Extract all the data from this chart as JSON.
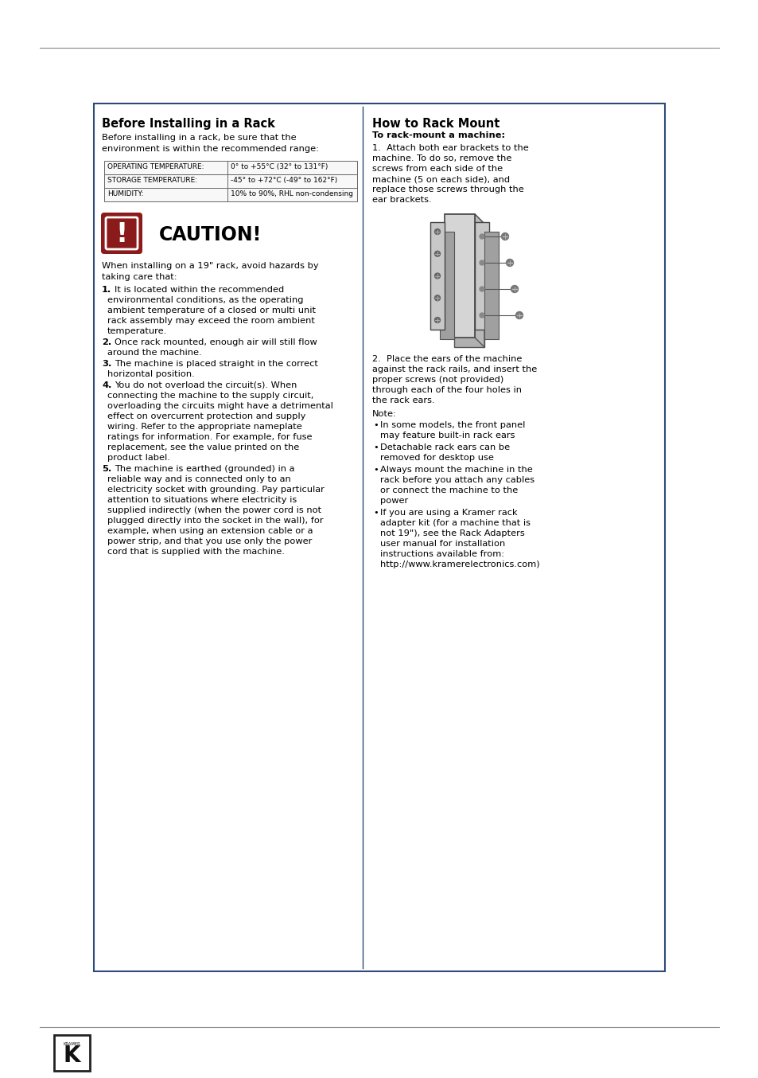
{
  "bg_color": "#ffffff",
  "border_color": "#2e4a7a",
  "page_bg": "#ffffff",
  "top_line_color": "#888888",
  "bottom_line_color": "#888888",
  "left_section": {
    "title": "Before Installing in a Rack",
    "intro": "Before installing in a rack, be sure that the\nenvironment is within the recommended range:",
    "table": [
      [
        "OPERATING TEMPERATURE:",
        "0° to +55°C (32° to 131°F)"
      ],
      [
        "STORAGE TEMPERATURE:",
        "-45° to +72°C (-49° to 162°F)"
      ],
      [
        "HUMIDITY:",
        "10% to 90%, RHL non-condensing"
      ]
    ],
    "caution_title": "CAUTION!",
    "caution_icon_bg": "#8b1a1a",
    "caution_text": "When installing on a 19\" rack, avoid hazards by\ntaking care that:",
    "items": [
      {
        "num": "1",
        "text": "It is located within the recommended\nenvironmental conditions, as the operating\nambient temperature of a closed or multi unit\nrack assembly may exceed the room ambient\ntemperature."
      },
      {
        "num": "2",
        "text": "Once rack mounted, enough air will still flow\naround the machine."
      },
      {
        "num": "3",
        "text": "The machine is placed straight in the correct\nhorizontal position."
      },
      {
        "num": "4",
        "text": "You do not overload the circuit(s). When\nconnecting the machine to the supply circuit,\noverloading the circuits might have a detrimental\neffect on overcurrent protection and supply\nwiring. Refer to the appropriate nameplate\nratings for information. For example, for fuse\nreplacement, see the value printed on the\nproduct label."
      },
      {
        "num": "5",
        "text": "The machine is earthed (grounded) in a\nreliable way and is connected only to an\nelectricity socket with grounding. Pay particular\nattention to situations where electricity is\nsupplied indirectly (when the power cord is not\nplugged directly into the socket in the wall), for\nexample, when using an extension cable or a\npower strip, and that you use only the power\ncord that is supplied with the machine."
      }
    ]
  },
  "right_section": {
    "title": "How to Rack Mount",
    "subtitle": "To rack-mount a machine:",
    "step1": "1.  Attach both ear brackets to the\nmachine. To do so, remove the\nscrews from each side of the\nmachine (5 on each side), and\nreplace those screws through the\near brackets.",
    "step2": "2.  Place the ears of the machine\nagainst the rack rails, and insert the\nproper screws (not provided)\nthrough each of the four holes in\nthe rack ears.",
    "note_title": "Note:",
    "notes": [
      "In some models, the front panel\nmay feature built-in rack ears",
      "Detachable rack ears can be\nremoved for desktop use",
      "Always mount the machine in the\nrack before you attach any cables\nor connect the machine to the\npower",
      "If you are using a Kramer rack\nadapter kit (for a machine that is\nnot 19\"), see the Rack Adapters\nuser manual for installation\ninstructions available from:\nhttp://www.kramerelectronics.com)"
    ]
  },
  "footer_logo_color": "#1a1a1a"
}
